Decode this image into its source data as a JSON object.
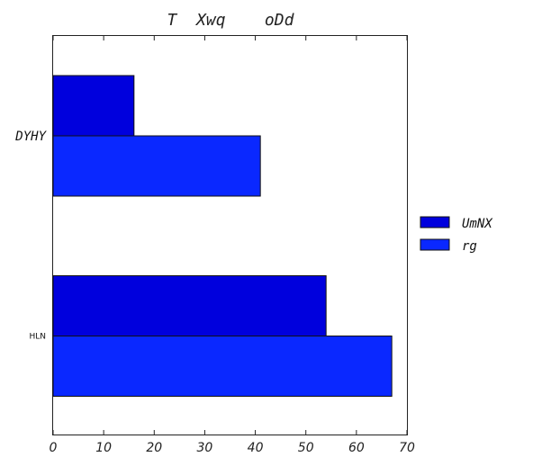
{
  "chart_data": {
    "type": "bar",
    "orientation": "horizontal",
    "title": "T  Xwq    oDd",
    "categories": [
      "DYHY",
      "HLN"
    ],
    "series": [
      {
        "name": "UmNX",
        "values": [
          16,
          54
        ],
        "color": "#0000dd"
      },
      {
        "name": "rg",
        "values": [
          41,
          67
        ],
        "color": "#0a28ff"
      }
    ],
    "xlim": [
      0,
      70
    ],
    "xticks": [
      "0",
      "10",
      "20",
      "30",
      "40",
      "50",
      "60",
      "70"
    ],
    "xlabel": "",
    "ylabel": "",
    "grid": false,
    "legend_position": "right"
  }
}
